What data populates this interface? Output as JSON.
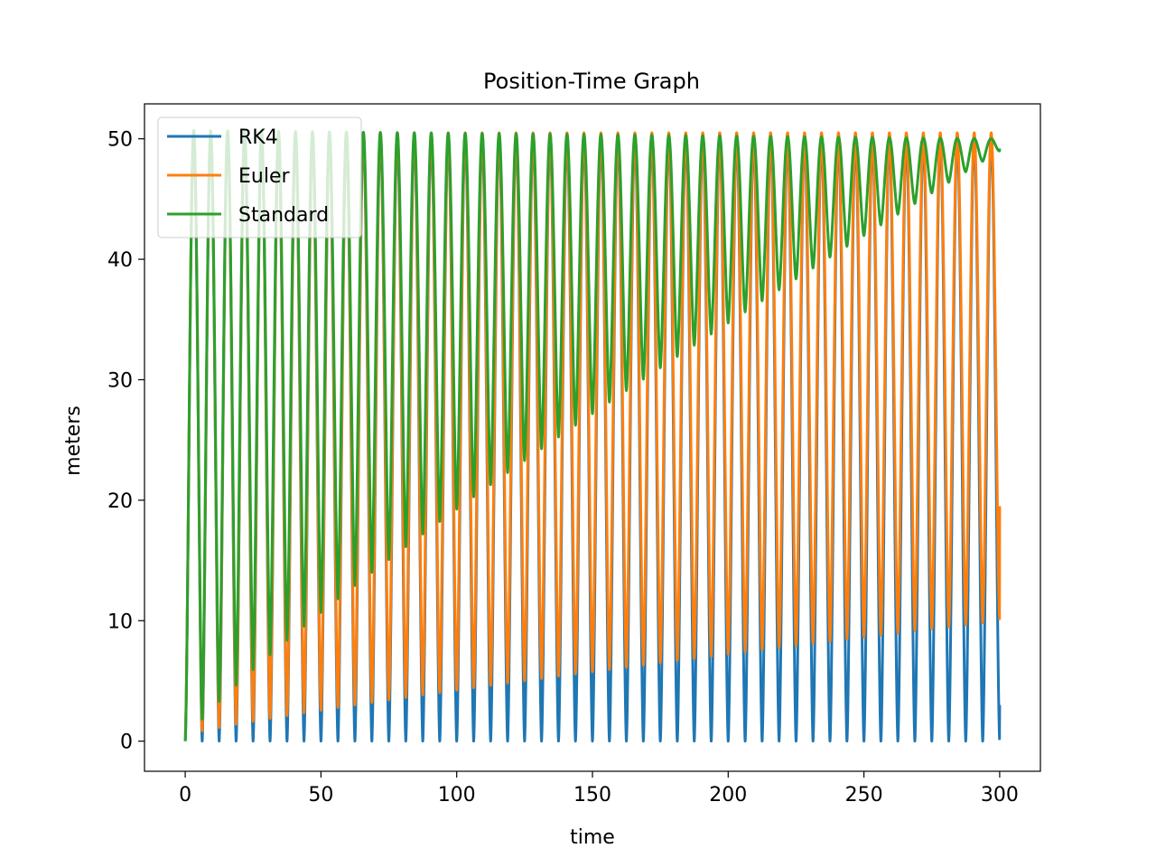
{
  "chart_data": {
    "type": "line",
    "title": "Position-Time Graph",
    "xlabel": "time",
    "ylabel": "meters",
    "xlim": [
      -15,
      315
    ],
    "ylim": [
      -2.5,
      52.9
    ],
    "x_ticks": [
      0,
      50,
      100,
      150,
      200,
      250,
      300
    ],
    "y_ticks": [
      0,
      10,
      20,
      30,
      40,
      50
    ],
    "grid": false,
    "legend_position": "top-left",
    "period": 6.25,
    "series": [
      {
        "name": "RK4",
        "color": "#1f77b4",
        "model": "oscillation between a lower envelope and an upper envelope over time",
        "peak_start": 50.0,
        "peak_end": 50.0,
        "trough_start": 0.0,
        "trough_end": 0.0,
        "end_value": 3.0
      },
      {
        "name": "Euler",
        "color": "#ff7f0e",
        "model": "oscillation with troughs rising slowly over time",
        "peak_start": 50.5,
        "peak_end": 50.5,
        "trough_start": 0.5,
        "trough_end": 10.0,
        "end_value": 19.5
      },
      {
        "name": "Standard",
        "color": "#2ca02c",
        "model": "oscillation with troughs rising quickly, converging near 49",
        "peak_start": 50.7,
        "peak_end": 50.0,
        "trough_start": 0.0,
        "trough_end": 49.0,
        "end_value": 49.2
      }
    ]
  }
}
